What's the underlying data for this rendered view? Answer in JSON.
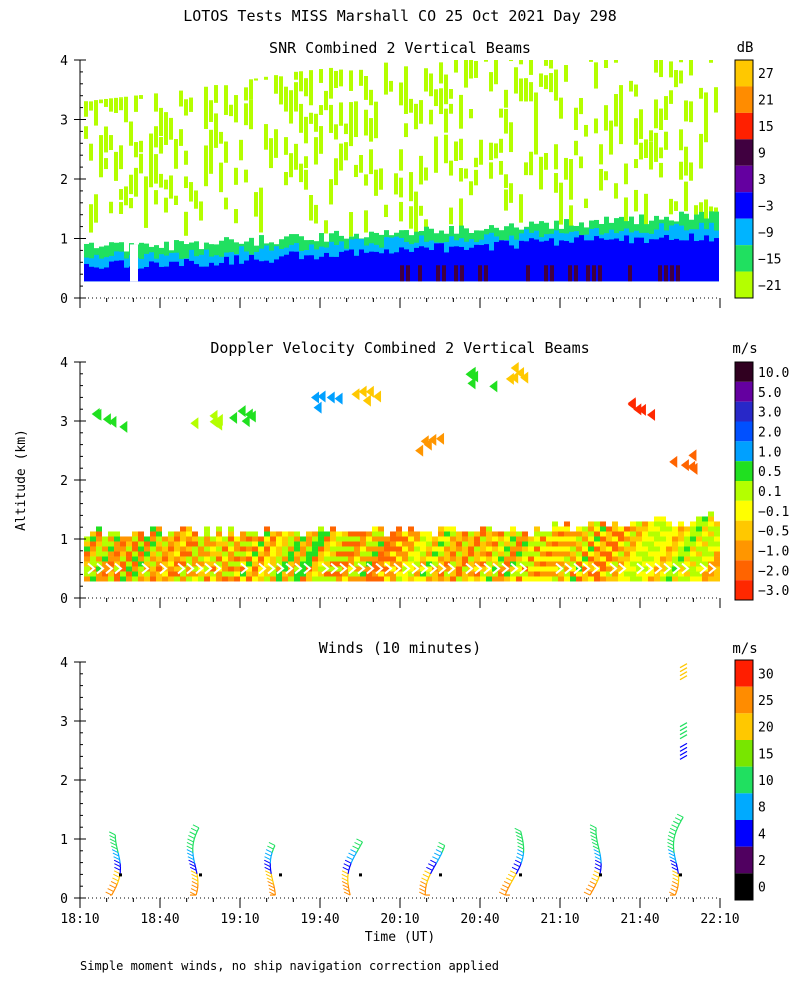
{
  "figure": {
    "title": "LOTOS Tests MISS Marshall CO  25 Oct 2021 Day 298",
    "shared_ylabel": "Altitude (km)",
    "shared_xlabel": "Time (UT)",
    "footnote": "Simple moment winds, no ship navigation correction applied"
  },
  "chart_data": [
    {
      "type": "heatmap",
      "id": "snr",
      "title": "SNR Combined 2 Vertical Beams",
      "xlabel": "",
      "ylabel": "Altitude (km)",
      "xlim": [
        0,
        240
      ],
      "ylim": [
        0,
        4
      ],
      "x_ticks_minutes": [
        0,
        30,
        60,
        90,
        120,
        150,
        180,
        210,
        240
      ],
      "y_ticks": [
        "0",
        "1",
        "2",
        "3",
        "4"
      ],
      "colorbar": {
        "unit": "dB",
        "labels": [
          "27",
          "21",
          "15",
          "9",
          "3",
          "−3",
          "−9",
          "−15",
          "−21"
        ],
        "colors": [
          "#ffc800",
          "#ff8c00",
          "#ff2000",
          "#400040",
          "#6400a0",
          "#0000ff",
          "#00b4ff",
          "#20e060",
          "#b4ff00"
        ]
      },
      "data_layers_bottom_to_top": [
        {
          "name": "base",
          "color": "#0000ff",
          "top_km": [
            0.55,
            0.6,
            0.7,
            0.8,
            0.9,
            1.0,
            1.0
          ]
        },
        {
          "name": "mid",
          "color": "#00b4ff",
          "top_km": [
            0.7,
            0.75,
            0.85,
            0.95,
            1.05,
            1.15,
            1.2
          ]
        },
        {
          "name": "upper",
          "color": "#20e060",
          "top_km": [
            0.85,
            0.9,
            1.0,
            1.1,
            1.2,
            1.3,
            1.4
          ]
        },
        {
          "name": "sparse",
          "color": "#b4ff00",
          "top_km": [
            3.3,
            3.5,
            3.8,
            4.0,
            4.0,
            4.0,
            4.0
          ]
        }
      ],
      "data_time_minutes": [
        0,
        40,
        80,
        120,
        160,
        200,
        240
      ]
    },
    {
      "type": "heatmap",
      "id": "velocity",
      "title": "Doppler Velocity Combined 2 Vertical Beams",
      "xlabel": "",
      "ylabel": "Altitude (km)",
      "xlim": [
        0,
        240
      ],
      "ylim": [
        0,
        4
      ],
      "x_ticks_minutes": [
        0,
        30,
        60,
        90,
        120,
        150,
        180,
        210,
        240
      ],
      "y_ticks": [
        "0",
        "1",
        "2",
        "3",
        "4"
      ],
      "colorbar": {
        "unit": "m/s",
        "labels": [
          "10.0",
          "5.0",
          "3.0",
          "2.0",
          "1.0",
          "0.5",
          "0.1",
          "−0.1",
          "−0.5",
          "−1.0",
          "−2.0",
          "−3.0"
        ],
        "colors": [
          "#300020",
          "#6400a0",
          "#2828c8",
          "#0050ff",
          "#00a0ff",
          "#20e020",
          "#b4ff00",
          "#ffff00",
          "#ffc800",
          "#ff9600",
          "#ff6400",
          "#ff2800"
        ]
      },
      "data_time_minutes": [
        0,
        40,
        80,
        120,
        160,
        200,
        240
      ],
      "main_layer_top_km": [
        1.05,
        1.05,
        1.1,
        1.1,
        1.1,
        1.2,
        1.3
      ],
      "main_layer_color": "#ffc800",
      "sparse_patches": [
        {
          "t": 10,
          "z": 3.0,
          "color": "#20e020"
        },
        {
          "t": 45,
          "z": 3.0,
          "color": "#b4ff00"
        },
        {
          "t": 60,
          "z": 3.1,
          "color": "#20e020"
        },
        {
          "t": 90,
          "z": 3.3,
          "color": "#00a0ff"
        },
        {
          "t": 105,
          "z": 3.4,
          "color": "#ffc800"
        },
        {
          "t": 130,
          "z": 2.6,
          "color": "#ff9600"
        },
        {
          "t": 150,
          "z": 3.7,
          "color": "#20e020"
        },
        {
          "t": 165,
          "z": 3.8,
          "color": "#ffc800"
        },
        {
          "t": 210,
          "z": 3.2,
          "color": "#ff2800"
        },
        {
          "t": 225,
          "z": 2.3,
          "color": "#ff6400"
        }
      ]
    },
    {
      "type": "scatter",
      "id": "winds",
      "title": "Winds (10 minutes)",
      "xlabel": "Time (UT)",
      "ylabel": "Altitude (km)",
      "xlim": [
        0,
        240
      ],
      "ylim": [
        0,
        4
      ],
      "x_ticks": [
        "18:10",
        "18:40",
        "19:10",
        "19:40",
        "20:10",
        "20:40",
        "21:10",
        "21:40",
        "22:10"
      ],
      "x_ticks_minutes": [
        0,
        30,
        60,
        90,
        120,
        150,
        180,
        210,
        240
      ],
      "y_ticks": [
        "0",
        "1",
        "2",
        "3",
        "4"
      ],
      "colorbar": {
        "unit": "m/s",
        "labels": [
          "30",
          "25",
          "20",
          "15",
          "10",
          "8",
          "4",
          "2",
          "0"
        ],
        "colors": [
          "#ff1e00",
          "#ff8c00",
          "#ffc800",
          "#78e600",
          "#20e060",
          "#00aaff",
          "#0000ff",
          "#500060",
          "#000000"
        ]
      },
      "profile_times_minutes": [
        15,
        45,
        75,
        105,
        135,
        165,
        195,
        225
      ],
      "profile_top_km": [
        1.1,
        1.25,
        0.9,
        1.0,
        0.9,
        1.15,
        1.2,
        1.4
      ],
      "extra_barbs_minutes_km": [
        {
          "t": 225,
          "z": 2.35
        },
        {
          "t": 225,
          "z": 2.7
        },
        {
          "t": 225,
          "z": 3.7
        }
      ]
    }
  ]
}
